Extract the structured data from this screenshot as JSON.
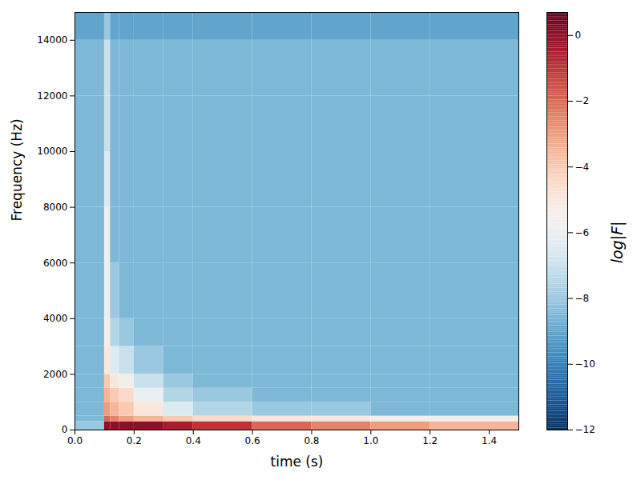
{
  "chart_data": {
    "type": "heatmap",
    "x_label": "time (s)",
    "y_label": "Frequency (Hz)",
    "xlim": [
      0,
      1.5
    ],
    "xticks": [
      {
        "value": 0,
        "label": "0.0"
      },
      {
        "value": 0.2,
        "label": "0.2"
      },
      {
        "value": 0.4,
        "label": "0.4"
      },
      {
        "value": 0.6,
        "label": "0.6"
      },
      {
        "value": 0.8,
        "label": "0.8"
      },
      {
        "value": 1.0,
        "label": "1.0"
      },
      {
        "value": 1.2,
        "label": "1.2"
      },
      {
        "value": 1.4,
        "label": "1.4"
      }
    ],
    "ylim": [
      0,
      15000
    ],
    "yticks": [
      0,
      2000,
      4000,
      6000,
      8000,
      10000,
      12000,
      14000
    ],
    "time_edges": [
      0,
      0.1,
      0.12,
      0.15,
      0.2,
      0.3,
      0.4,
      0.6,
      0.8,
      1.0,
      1.2,
      1.5
    ],
    "frequency_edges": [
      0,
      300,
      500,
      1000,
      1500,
      2000,
      3000,
      4000,
      6000,
      8000,
      10000,
      12000,
      14000,
      15000
    ],
    "cells": [
      [
        -8,
        0,
        0,
        0,
        0,
        -0.5,
        -1,
        -2,
        -2.5,
        -3,
        -3.5
      ],
      [
        -8.5,
        -2,
        -2.5,
        -3,
        -3.5,
        -4,
        -4.5,
        -5,
        -5,
        -5.5,
        -5.5
      ],
      [
        -8.5,
        -3,
        -3.5,
        -4,
        -5,
        -6.5,
        -7.5,
        -8,
        -8,
        -8.5,
        -8.5
      ],
      [
        -8.5,
        -3.5,
        -4,
        -4.5,
        -6,
        -7.5,
        -8,
        -8.5,
        -8.5,
        -8.5,
        -8.5
      ],
      [
        -8.5,
        -4,
        -5,
        -5.5,
        -7,
        -8,
        -8.5,
        -8.5,
        -8.5,
        -8.5,
        -8.5
      ],
      [
        -8.5,
        -5,
        -6.5,
        -7,
        -8,
        -8.5,
        -8.5,
        -8.5,
        -8.5,
        -8.5,
        -8.5
      ],
      [
        -8.5,
        -5.5,
        -7.5,
        -8,
        -8.5,
        -8.5,
        -8.5,
        -8.5,
        -8.5,
        -8.5,
        -8.5
      ],
      [
        -8.5,
        -6,
        -8,
        -8.5,
        -8.5,
        -8.5,
        -8.5,
        -8.5,
        -8.5,
        -8.5,
        -8.5
      ],
      [
        -8.5,
        -6,
        -8.5,
        -8.5,
        -8.5,
        -8.5,
        -8.5,
        -8.5,
        -8.5,
        -8.5,
        -8.5
      ],
      [
        -8.5,
        -6.5,
        -8.5,
        -8.5,
        -8.5,
        -8.5,
        -8.5,
        -8.5,
        -8.5,
        -8.5,
        -8.5
      ],
      [
        -8.5,
        -7,
        -8.5,
        -8.5,
        -8.5,
        -8.5,
        -8.5,
        -8.5,
        -8.5,
        -8.5,
        -8.5
      ],
      [
        -8.5,
        -7,
        -8.5,
        -8.5,
        -8.5,
        -8.5,
        -8.5,
        -8.5,
        -8.5,
        -8.5,
        -8.5
      ],
      [
        -9,
        -8,
        -9,
        -9,
        -9,
        -9,
        -9,
        -9,
        -9,
        -9,
        -9
      ]
    ],
    "colorbar": {
      "label": "log|F|",
      "range": [
        -12,
        0.7
      ],
      "ticks": [
        0,
        -2,
        -4,
        -6,
        -8,
        -10,
        -12
      ]
    }
  }
}
